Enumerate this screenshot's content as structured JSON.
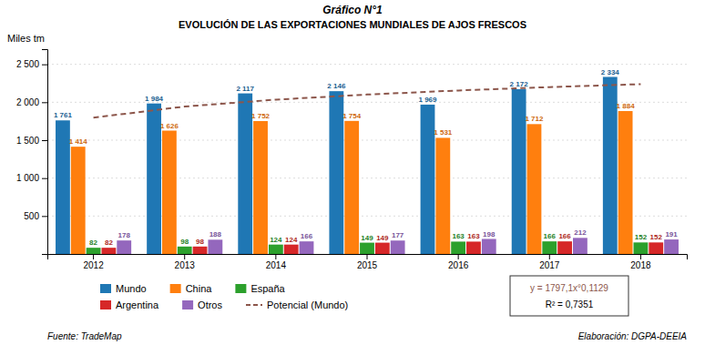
{
  "chart_data": {
    "type": "bar",
    "title": "Gráfico N°1",
    "subtitle": "EVOLUCIÓN DE LAS EXPORTACIONES MUNDIALES DE AJOS FRESCOS",
    "y_label": "Miles tm",
    "categories": [
      "2012",
      "2013",
      "2014",
      "2015",
      "2016",
      "2017",
      "2018"
    ],
    "series": [
      {
        "name": "Mundo",
        "type": "bar",
        "values": [
          1761,
          1984,
          2117,
          2146,
          1969,
          2172,
          2334
        ],
        "value_labels": [
          "1 761",
          "1 984",
          "2 117",
          "2 146",
          "1 969",
          "2 172",
          "2 334"
        ]
      },
      {
        "name": "China",
        "type": "bar",
        "values": [
          1414,
          1626,
          1752,
          1754,
          1531,
          1712,
          1884
        ],
        "value_labels": [
          "1 414",
          "1 626",
          "1 752",
          "1 754",
          "1 531",
          "1 712",
          "1 884"
        ]
      },
      {
        "name": "España",
        "type": "bar",
        "values": [
          82,
          98,
          124,
          149,
          163,
          166,
          152
        ],
        "value_labels": [
          "82",
          "98",
          "124",
          "149",
          "163",
          "166",
          "152"
        ]
      },
      {
        "name": "Argentina",
        "type": "bar",
        "values": [
          82,
          98,
          124,
          149,
          163,
          166,
          152
        ],
        "value_labels": [
          "82",
          "98",
          "124",
          "149",
          "163",
          "166",
          "152"
        ]
      },
      {
        "name": "Otros",
        "type": "bar",
        "values": [
          178,
          188,
          166,
          177,
          198,
          212,
          191
        ],
        "value_labels": [
          "178",
          "188",
          "166",
          "177",
          "198",
          "212",
          "191"
        ]
      },
      {
        "name": "Potencial (Mundo)",
        "type": "line",
        "line_style": "dashed",
        "values": [
          1797.1,
          1943.4,
          2034.4,
          2101.6,
          2155.2,
          2200.0,
          2238.6
        ]
      }
    ],
    "ylim": [
      0,
      2700
    ],
    "yticks": [
      500,
      {
        "value": 1000,
        "label": "1 000"
      },
      {
        "value": 1500,
        "label": "1 500"
      },
      {
        "value": 2000,
        "label": "2 000"
      },
      {
        "value": 2500,
        "label": "2 500"
      }
    ],
    "grid": true,
    "legend": "bottom",
    "data_labels": true,
    "annotations": [
      "y = 1797,1x°0,1129",
      "R² = 0,7351",
      "Fuente: TradeMap",
      "Elaboración: DGPA-DEEIA"
    ]
  }
}
